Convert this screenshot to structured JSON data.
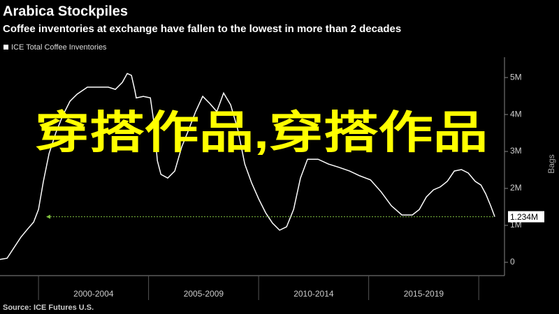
{
  "chart_data": {
    "type": "line",
    "title": "Arabica Stockpiles",
    "subtitle": "Coffee inventories at exchange have fallen to the lowest in more than 2 decades",
    "y_axis_label": "Bags",
    "source": "Source: ICE Futures U.S.",
    "overlay_text": "穿搭作品,穿搭作品",
    "xlim": [
      1998.25,
      2021.17
    ],
    "xticks": [
      2000,
      2005,
      2010,
      2015,
      2020
    ],
    "x_periods": [
      "2000-2004",
      "2005-2009",
      "2010-2014",
      "2015-2019"
    ],
    "ylim": [
      -360000,
      5550000
    ],
    "yticks": [
      0,
      {
        "value": 1000000,
        "label": "1M"
      },
      {
        "value": 2000000,
        "label": "2M"
      },
      {
        "value": 3000000,
        "label": "3M"
      },
      {
        "value": 4000000,
        "label": "4M"
      },
      {
        "value": 5000000,
        "label": "5M"
      }
    ],
    "series": [
      {
        "name": "ICE Total Coffee Inventories",
        "color": "#ffffff",
        "x": [
          1998.25,
          1998.57,
          1998.89,
          1999.2,
          1999.52,
          1999.78,
          2000,
          2000.22,
          2000.48,
          2000.79,
          2001.11,
          2001.43,
          2001.75,
          2002.22,
          2002.7,
          2003.17,
          2003.49,
          2003.81,
          2004.03,
          2004.22,
          2004.38,
          2004.44,
          2004.76,
          2005.08,
          2005.24,
          2005.4,
          2005.56,
          2005.87,
          2006.19,
          2006.51,
          2006.83,
          2007.14,
          2007.46,
          2007.78,
          2008.1,
          2008.41,
          2008.73,
          2009.05,
          2009.37,
          2009.68,
          2010,
          2010.32,
          2010.63,
          2010.95,
          2011.27,
          2011.59,
          2011.9,
          2012.22,
          2012.7,
          2013.17,
          2013.65,
          2014.13,
          2014.6,
          2015.08,
          2015.56,
          2016.03,
          2016.51,
          2016.98,
          2017.3,
          2017.62,
          2017.94,
          2018.25,
          2018.57,
          2018.89,
          2019.21,
          2019.52,
          2019.84,
          2020.1,
          2020.32,
          2020.54,
          2020.73
        ],
        "values": [
          80000,
          110000,
          400000,
          680000,
          910000,
          1090000,
          1430000,
          2190000,
          2940000,
          3510000,
          3980000,
          4360000,
          4550000,
          4740000,
          4740000,
          4740000,
          4680000,
          4870000,
          5110000,
          5060000,
          4640000,
          4450000,
          4490000,
          4450000,
          3790000,
          2750000,
          2380000,
          2280000,
          2470000,
          3130000,
          3600000,
          4080000,
          4490000,
          4300000,
          4080000,
          4580000,
          4260000,
          3600000,
          2660000,
          2150000,
          1720000,
          1340000,
          1060000,
          870000,
          960000,
          1430000,
          2280000,
          2790000,
          2790000,
          2660000,
          2570000,
          2470000,
          2340000,
          2230000,
          1910000,
          1530000,
          1280000,
          1280000,
          1430000,
          1770000,
          1960000,
          2040000,
          2190000,
          2470000,
          2510000,
          2420000,
          2190000,
          2090000,
          1850000,
          1530000,
          1234000
        ],
        "value_labels": [
          null,
          null,
          null,
          null,
          null,
          null,
          null,
          null,
          null,
          null,
          null,
          null,
          null,
          null,
          null,
          null,
          null,
          null,
          null,
          null,
          null,
          null,
          null,
          null,
          null,
          null,
          null,
          null,
          null,
          null,
          null,
          null,
          null,
          null,
          null,
          null,
          null,
          null,
          null,
          null,
          null,
          null,
          null,
          null,
          null,
          null,
          null,
          null,
          null,
          null,
          null,
          null,
          null,
          null,
          null,
          null,
          null,
          null,
          null,
          null,
          null,
          null,
          null,
          null,
          null,
          null,
          null,
          null,
          null,
          null,
          "1.234M"
        ]
      }
    ]
  }
}
